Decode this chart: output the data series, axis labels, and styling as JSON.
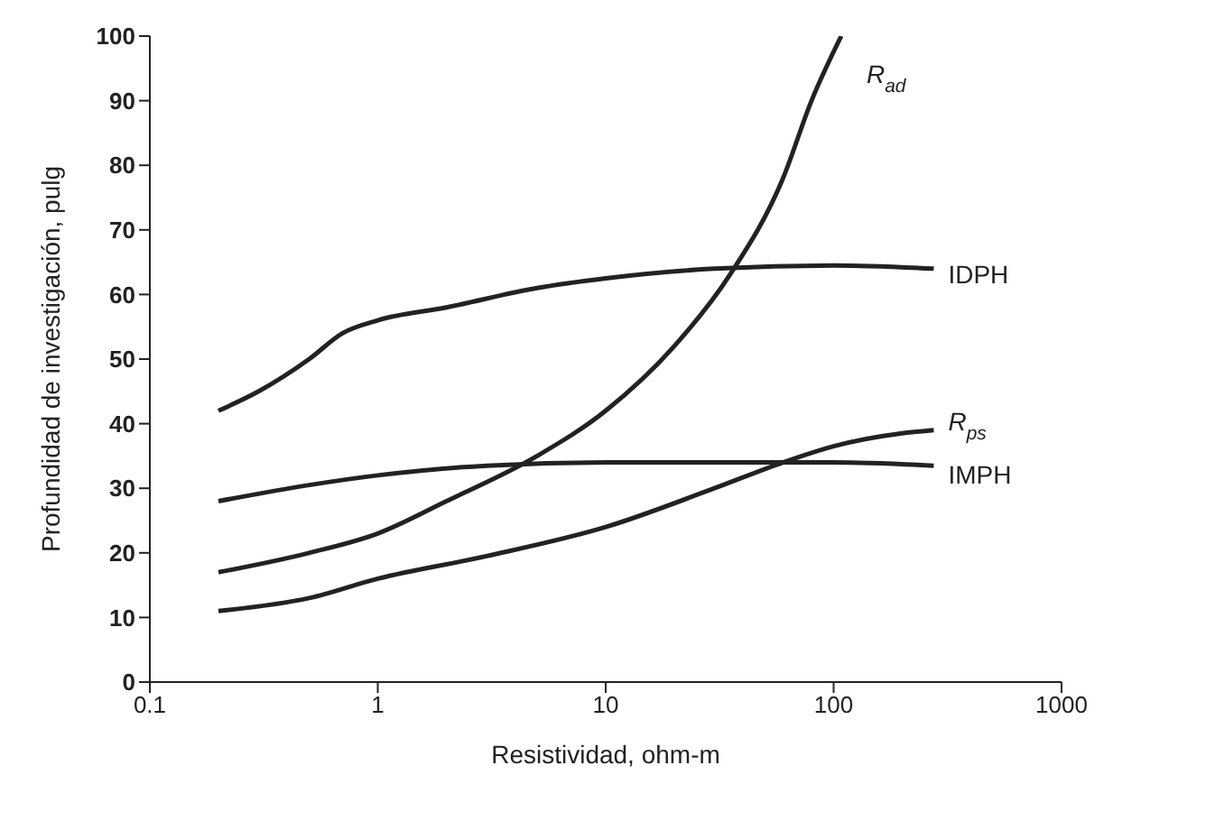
{
  "chart_data": {
    "type": "line",
    "xlabel": "Resistividad, ohm-m",
    "ylabel": "Profundidad de investigación, pulg",
    "log": "x",
    "xlim": [
      0.1,
      1000
    ],
    "xticks": [
      0.1,
      1,
      10,
      100,
      1000
    ],
    "ylim": [
      0,
      100
    ],
    "yticks": [
      0,
      10,
      20,
      30,
      40,
      50,
      60,
      70,
      80,
      90,
      100
    ],
    "grid": false,
    "legend": false,
    "marker": "none",
    "line_style": "solid",
    "series": [
      {
        "name": "R$_{ad}$",
        "color": "#222222",
        "x": [
          0.2,
          0.5,
          1,
          2,
          5,
          10,
          20,
          35,
          60,
          80,
          108
        ],
        "values": [
          17,
          20,
          23,
          28,
          35,
          42,
          52,
          63,
          78,
          90,
          100
        ]
      },
      {
        "name": "IDPH",
        "color": "#222222",
        "x": [
          0.2,
          0.3,
          0.5,
          0.7,
          1,
          2,
          5,
          10,
          30,
          100,
          275
        ],
        "values": [
          42,
          45,
          50,
          54,
          56,
          58,
          61,
          62.5,
          64,
          64.5,
          64
        ]
      },
      {
        "name": "R$_{ps}$",
        "color": "#222222",
        "x": [
          0.2,
          0.5,
          1,
          3,
          10,
          30,
          60,
          100,
          200,
          275
        ],
        "values": [
          11,
          13,
          16,
          19.5,
          24,
          30,
          34,
          36.5,
          38.5,
          39
        ]
      },
      {
        "name": "IMPH",
        "color": "#222222",
        "x": [
          0.2,
          0.5,
          1,
          3,
          10,
          30,
          100,
          275
        ],
        "values": [
          28,
          30.5,
          32,
          33.5,
          34,
          34,
          34,
          33.5
        ]
      }
    ]
  }
}
